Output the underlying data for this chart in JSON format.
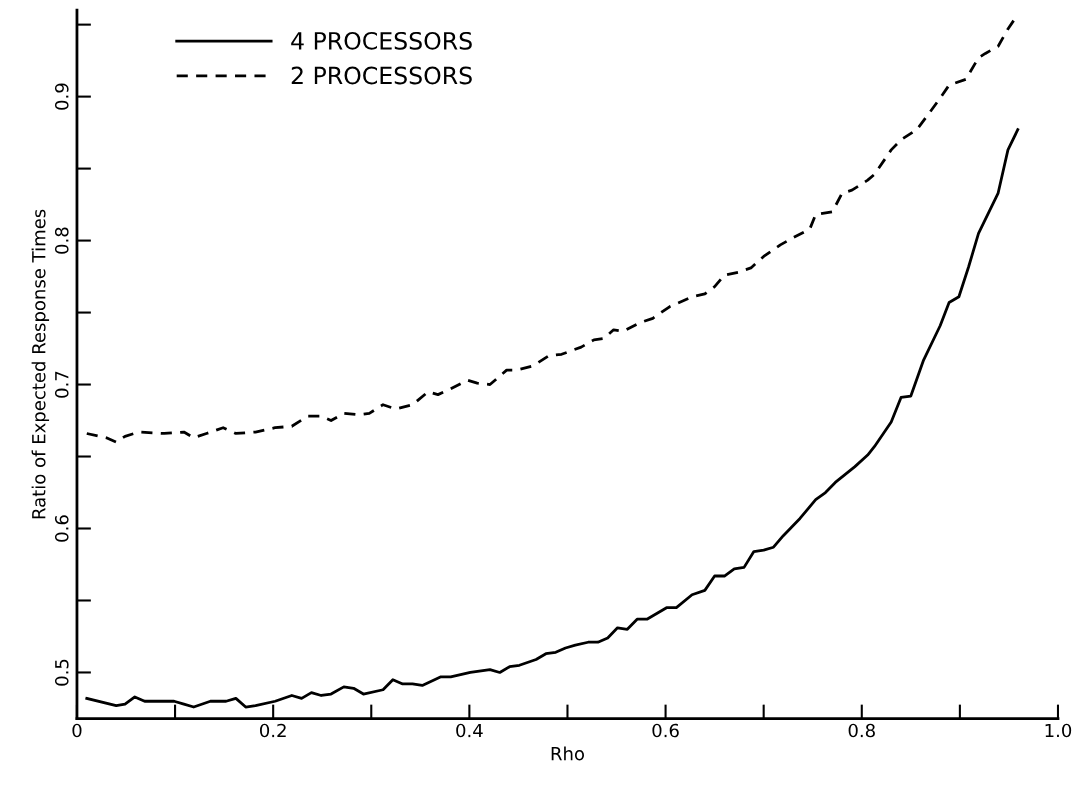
{
  "chart_data": {
    "type": "line",
    "xlabel": "Rho",
    "ylabel": "Ratio of Expected Response Times",
    "xlim": [
      0,
      1
    ],
    "ylim": [
      0.468,
      0.96
    ],
    "xticks": [
      {
        "value": 0,
        "label": "0"
      },
      {
        "value": 0.1,
        "label": null
      },
      0.2,
      {
        "value": 0.3,
        "label": null
      },
      0.4,
      {
        "value": 0.5,
        "label": null
      },
      0.6,
      {
        "value": 0.7,
        "label": null
      },
      0.8,
      {
        "value": 0.9,
        "label": null
      },
      {
        "value": 1,
        "label": "1.0"
      }
    ],
    "yticks": [
      0.5,
      {
        "value": 0.55,
        "label": null
      },
      0.6,
      {
        "value": 0.65,
        "label": null
      },
      0.7,
      {
        "value": 0.75,
        "label": null
      },
      0.8,
      {
        "value": 0.85,
        "label": null
      },
      0.9,
      {
        "value": 0.95,
        "label": null
      }
    ],
    "grid": false,
    "legend": "top left",
    "series": [
      {
        "name": "4 PROCESSORS",
        "color": "#000000",
        "line_style": "solid",
        "x": [
          0.01,
          0.04,
          0.049,
          0.059,
          0.069,
          0.099,
          0.109,
          0.119,
          0.136,
          0.152,
          0.162,
          0.172,
          0.182,
          0.202,
          0.219,
          0.229,
          0.239,
          0.249,
          0.259,
          0.272,
          0.282,
          0.292,
          0.312,
          0.322,
          0.332,
          0.342,
          0.352,
          0.371,
          0.381,
          0.401,
          0.421,
          0.431,
          0.441,
          0.451,
          0.468,
          0.478,
          0.488,
          0.498,
          0.508,
          0.521,
          0.531,
          0.541,
          0.551,
          0.561,
          0.571,
          0.581,
          0.601,
          0.611,
          0.627,
          0.64,
          0.65,
          0.66,
          0.67,
          0.68,
          0.69,
          0.7,
          0.71,
          0.72,
          0.737,
          0.753,
          0.763,
          0.773,
          0.793,
          0.806,
          0.813,
          0.83,
          0.84,
          0.85,
          0.863,
          0.88,
          0.889,
          0.899,
          0.909,
          0.919,
          0.939,
          0.949,
          0.959
        ],
        "values": [
          0.482,
          0.477,
          0.478,
          0.483,
          0.48,
          0.48,
          0.478,
          0.476,
          0.48,
          0.48,
          0.482,
          0.476,
          0.477,
          0.48,
          0.484,
          0.482,
          0.486,
          0.484,
          0.485,
          0.49,
          0.489,
          0.485,
          0.488,
          0.495,
          0.492,
          0.492,
          0.491,
          0.497,
          0.497,
          0.5,
          0.502,
          0.5,
          0.504,
          0.505,
          0.509,
          0.513,
          0.514,
          0.517,
          0.519,
          0.521,
          0.521,
          0.524,
          0.531,
          0.53,
          0.537,
          0.537,
          0.545,
          0.545,
          0.554,
          0.557,
          0.567,
          0.567,
          0.572,
          0.573,
          0.584,
          0.585,
          0.587,
          0.595,
          0.607,
          0.62,
          0.625,
          0.632,
          0.643,
          0.651,
          0.657,
          0.674,
          0.691,
          0.692,
          0.717,
          0.741,
          0.757,
          0.761,
          0.782,
          0.805,
          0.833,
          0.863,
          0.877
        ]
      },
      {
        "name": "2 PROCESSORS",
        "color": "#000000",
        "line_style": "dashed",
        "x": [
          0.01,
          0.03,
          0.04,
          0.049,
          0.063,
          0.089,
          0.109,
          0.119,
          0.132,
          0.149,
          0.162,
          0.182,
          0.202,
          0.219,
          0.235,
          0.249,
          0.259,
          0.272,
          0.288,
          0.298,
          0.312,
          0.325,
          0.342,
          0.358,
          0.368,
          0.381,
          0.398,
          0.408,
          0.421,
          0.438,
          0.448,
          0.465,
          0.481,
          0.494,
          0.514,
          0.527,
          0.537,
          0.547,
          0.557,
          0.574,
          0.587,
          0.604,
          0.614,
          0.627,
          0.64,
          0.65,
          0.66,
          0.674,
          0.687,
          0.7,
          0.717,
          0.73,
          0.747,
          0.753,
          0.77,
          0.78,
          0.79,
          0.806,
          0.813,
          0.83,
          0.84,
          0.856,
          0.866,
          0.88,
          0.889,
          0.906,
          0.919,
          0.926,
          0.939,
          0.949,
          0.956,
          0.959
        ],
        "values": [
          0.666,
          0.663,
          0.66,
          0.664,
          0.667,
          0.666,
          0.667,
          0.663,
          0.666,
          0.67,
          0.666,
          0.667,
          0.67,
          0.671,
          0.678,
          0.678,
          0.675,
          0.68,
          0.679,
          0.68,
          0.686,
          0.683,
          0.686,
          0.695,
          0.693,
          0.697,
          0.703,
          0.701,
          0.7,
          0.71,
          0.71,
          0.713,
          0.72,
          0.721,
          0.726,
          0.731,
          0.732,
          0.738,
          0.737,
          0.743,
          0.746,
          0.754,
          0.757,
          0.761,
          0.763,
          0.768,
          0.776,
          0.778,
          0.781,
          0.789,
          0.797,
          0.802,
          0.808,
          0.818,
          0.82,
          0.833,
          0.835,
          0.842,
          0.846,
          0.863,
          0.87,
          0.877,
          0.886,
          0.899,
          0.908,
          0.912,
          0.927,
          0.93,
          0.935,
          0.947,
          0.954,
          0.954
        ]
      }
    ]
  }
}
